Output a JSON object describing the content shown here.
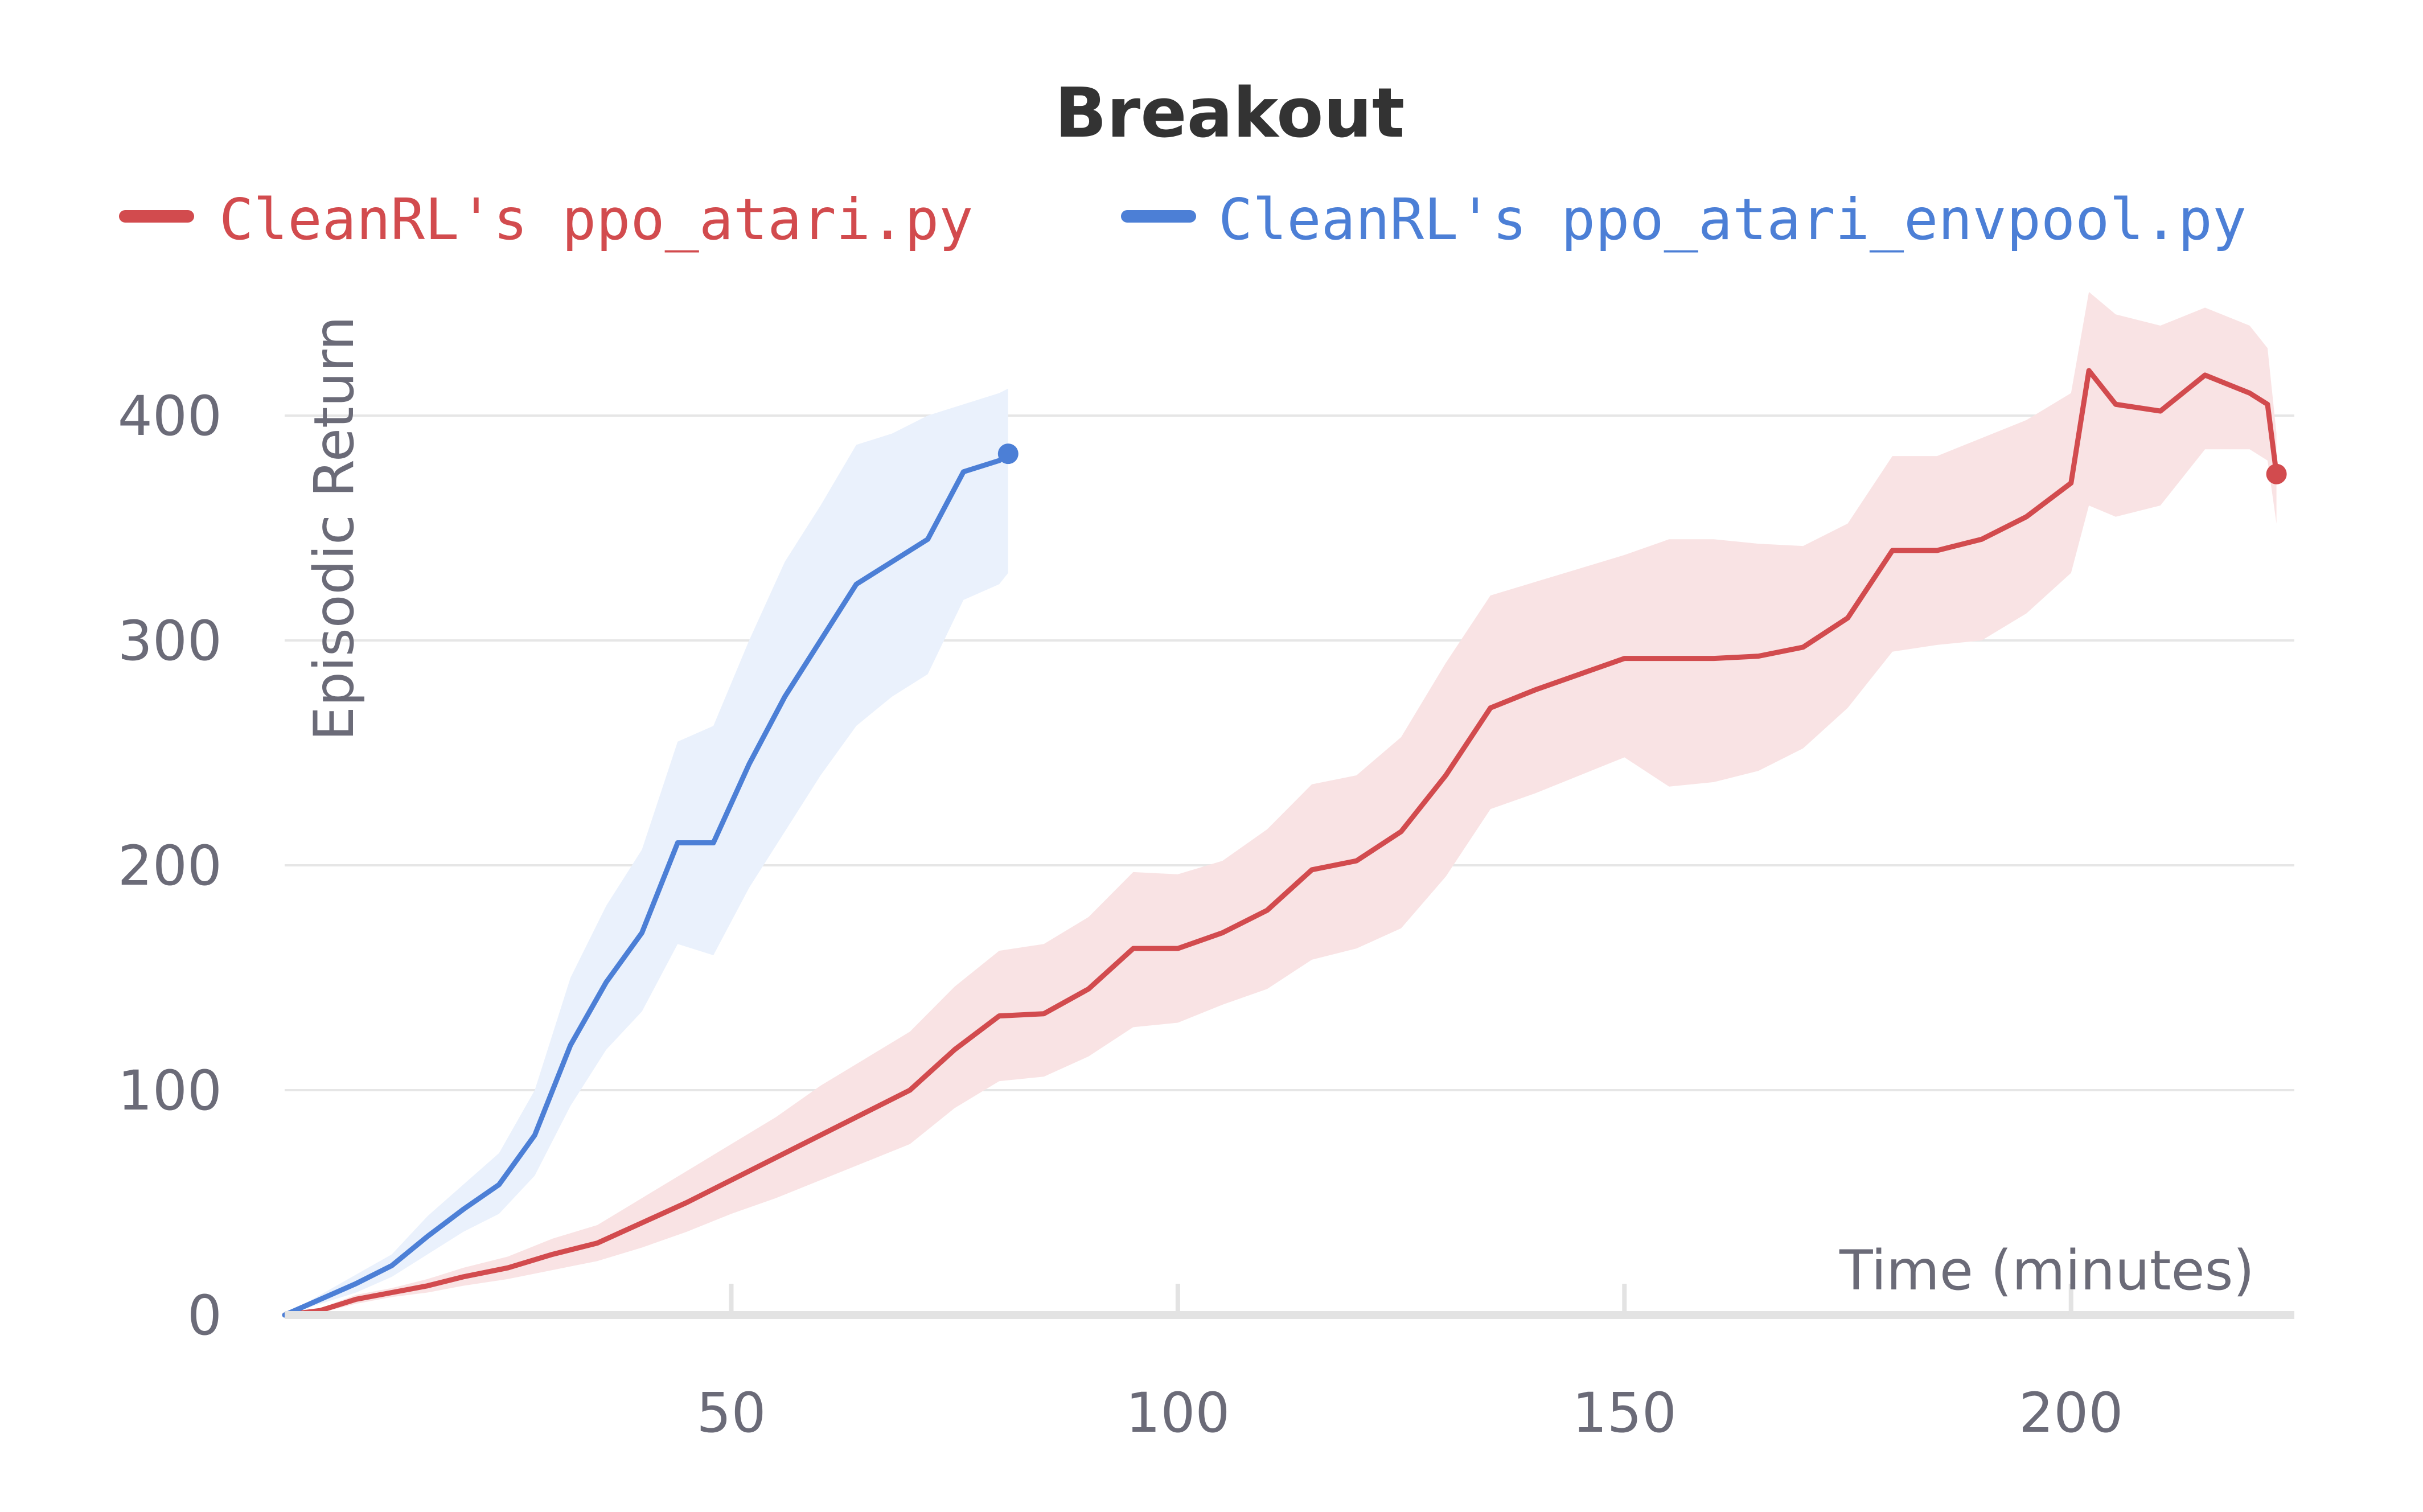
{
  "chart_data": {
    "type": "line",
    "title": "Breakout",
    "xlabel": "Time (minutes)",
    "ylabel": "Episodic Return",
    "xlim": [
      0,
      225
    ],
    "ylim": [
      0,
      400
    ],
    "x_ticks": [
      50,
      100,
      150,
      200
    ],
    "y_ticks": [
      0,
      100,
      200,
      300,
      400
    ],
    "grid": true,
    "legend_position": "top",
    "series": [
      {
        "name": "CleanRL's ppo_atari.py",
        "color": "#d24b4e",
        "band_color": "#f9e3e4",
        "x": [
          0,
          4,
          8,
          12,
          16,
          20,
          25,
          30,
          35,
          40,
          45,
          50,
          55,
          60,
          65,
          70,
          75,
          80,
          85,
          90,
          95,
          100,
          105,
          110,
          115,
          120,
          125,
          130,
          135,
          140,
          145,
          150,
          155,
          160,
          165,
          170,
          175,
          180,
          185,
          190,
          195,
          200,
          202,
          205,
          210,
          215,
          220,
          222,
          223
        ],
        "y": [
          0,
          2,
          7,
          10,
          13,
          17,
          21,
          27,
          32,
          41,
          50,
          60,
          70,
          80,
          90,
          100,
          118,
          133,
          134,
          145,
          163,
          163,
          170,
          180,
          198,
          202,
          215,
          240,
          270,
          278,
          285,
          292,
          292,
          292,
          293,
          297,
          310,
          340,
          340,
          345,
          355,
          370,
          420,
          405,
          402,
          418,
          410,
          405,
          374
        ],
        "lower": [
          0,
          1,
          5,
          8,
          10,
          13,
          16,
          20,
          24,
          30,
          37,
          45,
          52,
          60,
          68,
          76,
          92,
          104,
          106,
          115,
          128,
          130,
          138,
          145,
          158,
          163,
          172,
          195,
          225,
          232,
          240,
          248,
          235,
          237,
          242,
          252,
          270,
          295,
          298,
          300,
          312,
          330,
          360,
          355,
          360,
          385,
          385,
          380,
          352
        ],
        "upper": [
          0,
          3,
          9,
          12,
          16,
          21,
          26,
          34,
          40,
          52,
          64,
          76,
          88,
          102,
          114,
          126,
          146,
          162,
          165,
          177,
          197,
          196,
          202,
          216,
          236,
          240,
          257,
          290,
          320,
          326,
          332,
          338,
          345,
          345,
          343,
          342,
          352,
          382,
          382,
          390,
          398,
          410,
          455,
          445,
          440,
          448,
          440,
          430,
          392
        ]
      },
      {
        "name": "CleanRL's ppo_atari_envpool.py",
        "color": "#4c7fd6",
        "band_color": "#eaf1fc",
        "x": [
          0,
          4,
          8,
          12,
          16,
          20,
          24,
          28,
          32,
          36,
          40,
          44,
          48,
          52,
          56,
          60,
          64,
          68,
          72,
          76,
          80,
          81
        ],
        "y": [
          0,
          7,
          14,
          22,
          35,
          47,
          58,
          80,
          120,
          148,
          170,
          210,
          210,
          245,
          275,
          300,
          325,
          335,
          345,
          375,
          380,
          383
        ],
        "lower": [
          0,
          5,
          10,
          17,
          27,
          37,
          45,
          62,
          93,
          118,
          135,
          165,
          160,
          190,
          215,
          240,
          262,
          275,
          285,
          318,
          325,
          330
        ],
        "upper": [
          0,
          9,
          18,
          27,
          44,
          58,
          72,
          100,
          150,
          182,
          207,
          255,
          262,
          300,
          335,
          360,
          387,
          392,
          400,
          405,
          410,
          412
        ]
      }
    ]
  }
}
